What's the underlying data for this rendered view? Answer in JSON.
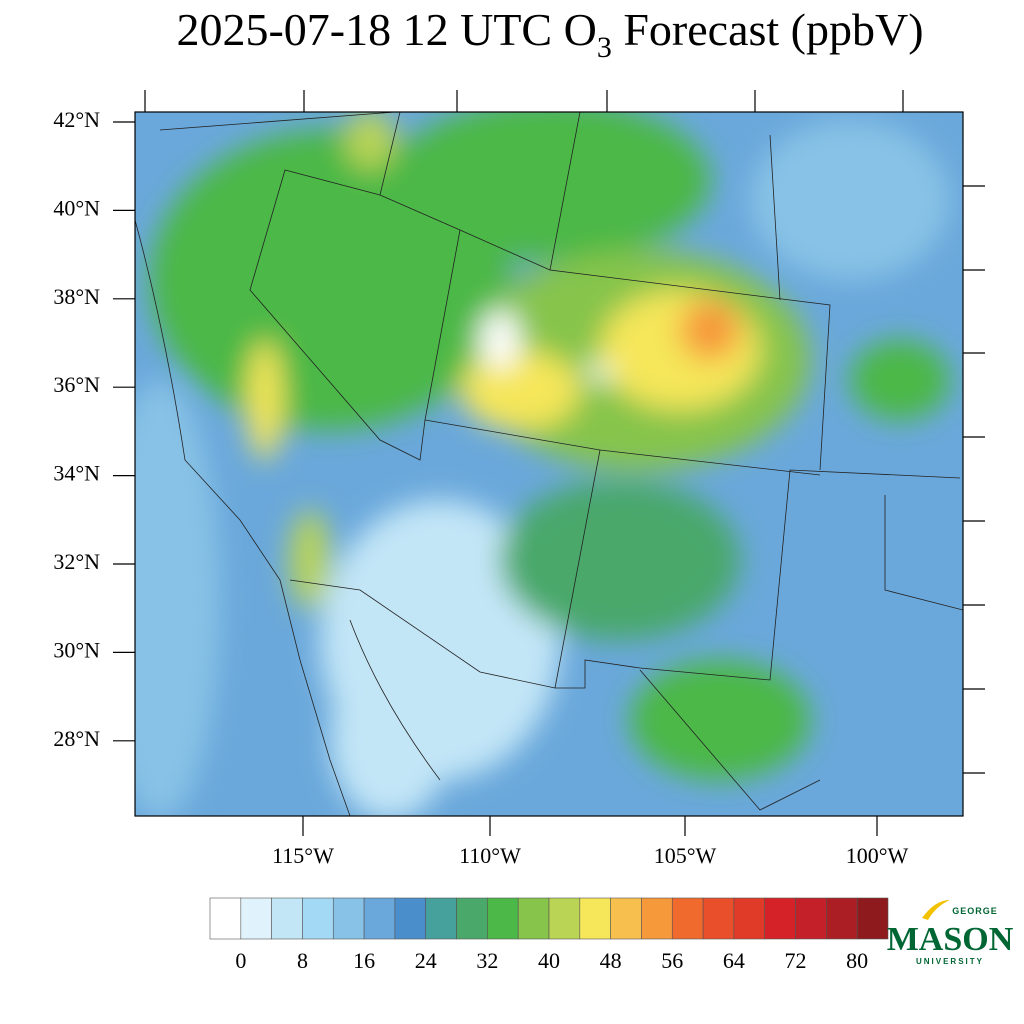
{
  "title": {
    "main": "2025-07-18 12 UTC O",
    "subscript": "3",
    "rest": " Forecast (ppbV)"
  },
  "map": {
    "lat_labels": [
      "42°N",
      "40°N",
      "38°N",
      "36°N",
      "34°N",
      "32°N",
      "30°N",
      "28°N"
    ],
    "lon_labels": [
      "115°W",
      "110°W",
      "105°W",
      "100°W"
    ]
  },
  "colorbar": {
    "colors": [
      "#ffffff",
      "#e0f2fb",
      "#c3e6f7",
      "#a3d9f4",
      "#88c2e6",
      "#6aa8db",
      "#4a8ecb",
      "#46a09c",
      "#4aa86a",
      "#4cb847",
      "#86c44b",
      "#bad456",
      "#f5e65a",
      "#f7bf4d",
      "#f6993b",
      "#f16a2d",
      "#e84f2a",
      "#e03a28",
      "#d52228",
      "#c4202a",
      "#ab1e24",
      "#8e1a1e"
    ],
    "labels": [
      0,
      8,
      16,
      24,
      32,
      40,
      48,
      56,
      64,
      72,
      80
    ]
  },
  "logo": {
    "top": "GEORGE",
    "main": "MASON",
    "bottom": "UNIVERSITY"
  }
}
